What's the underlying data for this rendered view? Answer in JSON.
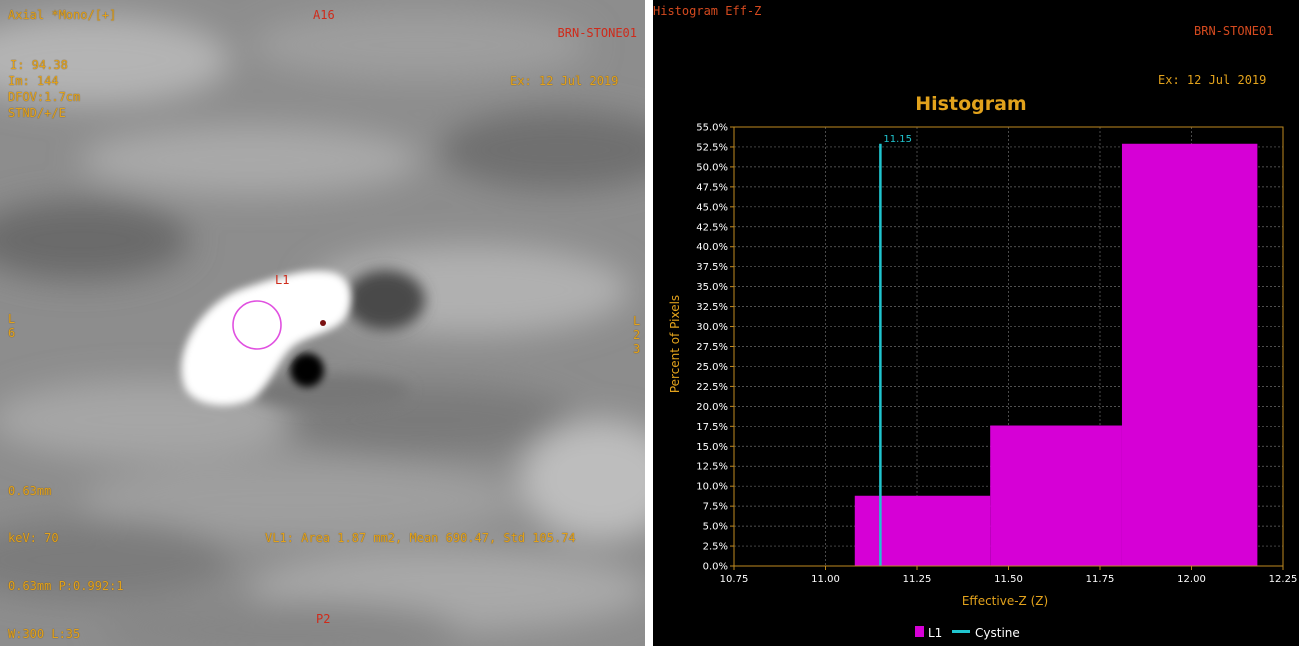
{
  "left_viewport": {
    "top_left": "Axial *Mono/[+]",
    "top_center": "A16",
    "top_right": "BRN-STONE01",
    "info_lines": [
      "I: 94.38",
      "Im: 144",
      "DFOV:1.7cm",
      "STND/+/E"
    ],
    "exam_date": "Ex: 12 Jul 2019",
    "left_orient": [
      "L",
      "6"
    ],
    "right_orient": [
      "L",
      "2",
      "3"
    ],
    "roi_label": "L1",
    "thickness": "0.63mm",
    "kev": "keV: 70",
    "roi_stats": "VL1: Area 1.87 mm2, Mean 690.47, Std 105.74",
    "pitch": "0.63mm P:0.992:1",
    "bottom_center": "P2",
    "window_level": "W:300 L:35"
  },
  "histogram_panel": {
    "header_left": "Histogram Eff-Z",
    "header_right": "BRN-STONE01",
    "exam_date": "Ex: 12 Jul 2019",
    "marker_label": "11.15",
    "legend": [
      {
        "label": "L1",
        "color": "#d600d6",
        "icon": "square-swatch"
      },
      {
        "label": "Cystine",
        "color": "#20c5cf",
        "icon": "line-swatch"
      }
    ]
  },
  "chart_data": {
    "type": "bar",
    "title": "Histogram",
    "xlabel": "Effective-Z (Z)",
    "ylabel": "Percent of Pixels",
    "xlim": [
      10.75,
      12.25
    ],
    "ylim": [
      0,
      55
    ],
    "x_ticks": [
      "10.75",
      "11.00",
      "11.25",
      "11.50",
      "11.75",
      "12.00",
      "12.25"
    ],
    "y_ticks": [
      "0.0%",
      "2.5%",
      "5.0%",
      "7.5%",
      "10.0%",
      "12.5%",
      "15.0%",
      "17.5%",
      "20.0%",
      "22.5%",
      "25.0%",
      "27.5%",
      "30.0%",
      "32.5%",
      "35.0%",
      "37.5%",
      "40.0%",
      "42.5%",
      "45.0%",
      "47.5%",
      "50.0%",
      "52.5%",
      "55.0%"
    ],
    "series": [
      {
        "name": "L1",
        "color": "#d600d6",
        "bins": [
          {
            "x0": 11.08,
            "x1": 11.45,
            "y": 8.8
          },
          {
            "x0": 11.45,
            "x1": 11.81,
            "y": 17.6
          },
          {
            "x0": 11.81,
            "x1": 12.18,
            "y": 52.9
          }
        ]
      },
      {
        "name": "Cystine",
        "color": "#20c5cf",
        "marker_x": 11.15,
        "marker_y": 52.9
      }
    ],
    "grid": true,
    "legend_position": "bottom"
  }
}
